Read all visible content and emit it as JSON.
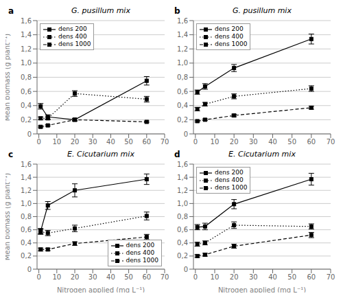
{
  "chart_data": [
    {
      "type": "line",
      "title": "G. pusillum mix",
      "annotations": [
        "a"
      ],
      "y_label": "Mean biomass (g plant⁻¹)",
      "x": [
        1,
        5,
        20,
        60
      ],
      "series": [
        {
          "name": "dens 200",
          "color": "#000000",
          "values": [
            0.39,
            0.24,
            0.2,
            0.75
          ],
          "yerr": [
            0.04,
            0.03,
            0.02,
            0.06
          ],
          "line_style": "solid",
          "marker": "square"
        },
        {
          "name": "dens 400",
          "color": "#000000",
          "values": [
            0.22,
            0.22,
            0.57,
            0.49
          ],
          "yerr": [
            0.02,
            0.02,
            0.04,
            0.04
          ],
          "line_style": "dotted",
          "marker": "square"
        },
        {
          "name": "dens 1000",
          "color": "#000000",
          "values": [
            0.1,
            0.12,
            0.2,
            0.17
          ],
          "yerr": [
            0.012,
            0.01,
            0.012,
            0.012
          ],
          "line_style": "dashed",
          "marker": "square"
        }
      ],
      "xlim": [
        -1,
        70
      ],
      "xticks": [
        0,
        10,
        20,
        30,
        40,
        50,
        60,
        70
      ],
      "ylim": [
        0,
        1.6
      ],
      "yticks": [
        0,
        {
          "value": 0.2,
          "label": "0,2"
        },
        {
          "value": 0.4,
          "label": "0,4"
        },
        {
          "value": 0.6,
          "label": "0,6"
        },
        {
          "value": 0.8,
          "label": "0,8"
        },
        {
          "value": 1.0,
          "label": "1,0"
        },
        {
          "value": 1.2,
          "label": "1,2"
        },
        {
          "value": 1.4,
          "label": "1,4"
        },
        {
          "value": 1.6,
          "label": "1,6"
        }
      ],
      "grid": "y",
      "legend": "upper left"
    },
    {
      "type": "line",
      "title": "G. pusillum mix",
      "annotations": [
        "b"
      ],
      "x": [
        1,
        5,
        20,
        60
      ],
      "series": [
        {
          "name": "dens 200",
          "color": "#000000",
          "values": [
            0.59,
            0.67,
            0.93,
            1.34
          ],
          "yerr": [
            0.03,
            0.04,
            0.05,
            0.07
          ],
          "line_style": "solid",
          "marker": "square"
        },
        {
          "name": "dens 400",
          "color": "#000000",
          "values": [
            0.35,
            0.42,
            0.53,
            0.64
          ],
          "yerr": [
            0.025,
            0.025,
            0.035,
            0.04
          ],
          "line_style": "dotted",
          "marker": "square"
        },
        {
          "name": "dens 1000",
          "color": "#000000",
          "values": [
            0.18,
            0.2,
            0.26,
            0.37
          ],
          "yerr": [
            0.012,
            0.012,
            0.018,
            0.022
          ],
          "line_style": "dashed",
          "marker": "square"
        }
      ],
      "xlim": [
        -1,
        70
      ],
      "xticks": [
        0,
        10,
        20,
        30,
        40,
        50,
        60,
        70
      ],
      "ylim": [
        0,
        1.6
      ],
      "yticks": [
        0,
        {
          "value": 0.2,
          "label": "0,2"
        },
        {
          "value": 0.4,
          "label": "0,4"
        },
        {
          "value": 0.6,
          "label": "0,6"
        },
        {
          "value": 0.8,
          "label": "0,8"
        },
        {
          "value": 1.0,
          "label": "1,0"
        },
        {
          "value": 1.2,
          "label": "1,2"
        },
        {
          "value": 1.4,
          "label": "1,4"
        },
        {
          "value": 1.6,
          "label": "1,6"
        }
      ],
      "grid": "y",
      "legend": "upper left"
    },
    {
      "type": "line",
      "title": "E. Cicutarium mix",
      "annotations": [
        "c"
      ],
      "y_label": "Mean biomass (g plant⁻¹)",
      "x_label": "Nitrogen applied (mg L⁻¹)",
      "x": [
        1,
        5,
        20,
        60
      ],
      "series": [
        {
          "name": "dens 200",
          "color": "#000000",
          "values": [
            0.58,
            0.97,
            1.2,
            1.37
          ],
          "yerr": [
            0.04,
            0.06,
            0.1,
            0.08
          ],
          "line_style": "solid",
          "marker": "square"
        },
        {
          "name": "dens 400",
          "color": "#000000",
          "values": [
            0.57,
            0.55,
            0.62,
            0.81
          ],
          "yerr": [
            0.04,
            0.04,
            0.05,
            0.06
          ],
          "line_style": "dotted",
          "marker": "square"
        },
        {
          "name": "dens 1000",
          "color": "#000000",
          "values": [
            0.3,
            0.3,
            0.39,
            0.49
          ],
          "yerr": [
            0.022,
            0.018,
            0.027,
            0.04
          ],
          "line_style": "dashed",
          "marker": "square"
        }
      ],
      "xlim": [
        -1,
        70
      ],
      "xticks": [
        0,
        10,
        20,
        30,
        40,
        50,
        60,
        70
      ],
      "ylim": [
        0,
        1.6
      ],
      "yticks": [
        0,
        {
          "value": 0.2,
          "label": "0,2"
        },
        {
          "value": 0.4,
          "label": "0,4"
        },
        {
          "value": 0.6,
          "label": "0,6"
        },
        {
          "value": 0.8,
          "label": "0,8"
        },
        {
          "value": 1.0,
          "label": "1,0"
        },
        {
          "value": 1.2,
          "label": "1,2"
        },
        {
          "value": 1.4,
          "label": "1,4"
        },
        {
          "value": 1.6,
          "label": "1,6"
        }
      ],
      "grid": "y",
      "legend": "lower right"
    },
    {
      "type": "line",
      "title": "E. Cicutarium mix",
      "annotations": [
        "d"
      ],
      "x_label": "Nitrogen applied (mg L⁻¹)",
      "x": [
        1,
        5,
        20,
        60
      ],
      "series": [
        {
          "name": "dens 200",
          "color": "#000000",
          "values": [
            0.64,
            0.65,
            0.99,
            1.37
          ],
          "yerr": [
            0.04,
            0.05,
            0.07,
            0.09
          ],
          "line_style": "solid",
          "marker": "square"
        },
        {
          "name": "dens 400",
          "color": "#000000",
          "values": [
            0.38,
            0.4,
            0.67,
            0.65
          ],
          "yerr": [
            0.03,
            0.03,
            0.05,
            0.04
          ],
          "line_style": "dotted",
          "marker": "square"
        },
        {
          "name": "dens 1000",
          "color": "#000000",
          "values": [
            0.2,
            0.22,
            0.35,
            0.52
          ],
          "yerr": [
            0.022,
            0.022,
            0.03,
            0.04
          ],
          "line_style": "dashed",
          "marker": "square"
        }
      ],
      "xlim": [
        -1,
        70
      ],
      "xticks": [
        0,
        10,
        20,
        30,
        40,
        50,
        60,
        70
      ],
      "ylim": [
        0,
        1.6
      ],
      "yticks": [
        0,
        {
          "value": 0.2,
          "label": "0,2"
        },
        {
          "value": 0.4,
          "label": "0,4"
        },
        {
          "value": 0.6,
          "label": "0,6"
        },
        {
          "value": 0.8,
          "label": "0,8"
        },
        {
          "value": 1.0,
          "label": "1,0"
        },
        {
          "value": 1.2,
          "label": "1,2"
        },
        {
          "value": 1.4,
          "label": "1,4"
        },
        {
          "value": 1.6,
          "label": "1,6"
        }
      ],
      "grid": "y",
      "legend": "upper left"
    }
  ]
}
